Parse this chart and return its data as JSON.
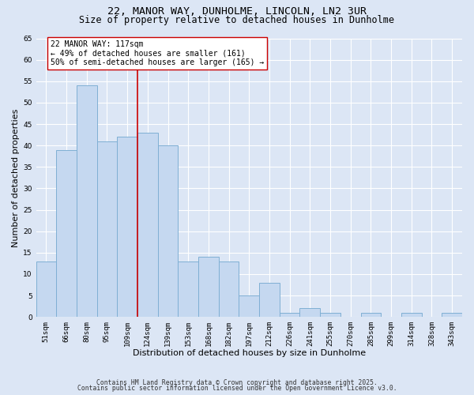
{
  "title_line1": "22, MANOR WAY, DUNHOLME, LINCOLN, LN2 3UR",
  "title_line2": "Size of property relative to detached houses in Dunholme",
  "xlabel": "Distribution of detached houses by size in Dunholme",
  "ylabel": "Number of detached properties",
  "categories": [
    "51sqm",
    "66sqm",
    "80sqm",
    "95sqm",
    "109sqm",
    "124sqm",
    "139sqm",
    "153sqm",
    "168sqm",
    "182sqm",
    "197sqm",
    "212sqm",
    "226sqm",
    "241sqm",
    "255sqm",
    "270sqm",
    "285sqm",
    "299sqm",
    "314sqm",
    "328sqm",
    "343sqm"
  ],
  "values": [
    13,
    39,
    54,
    41,
    42,
    43,
    40,
    13,
    14,
    13,
    5,
    8,
    1,
    2,
    1,
    0,
    1,
    0,
    1,
    0,
    1
  ],
  "bar_color": "#c5d8f0",
  "bar_edge_color": "#7fafd4",
  "vline_x": 4.5,
  "vline_color": "#cc0000",
  "annotation_text": "22 MANOR WAY: 117sqm\n← 49% of detached houses are smaller (161)\n50% of semi-detached houses are larger (165) →",
  "annotation_box_color": "#ffffff",
  "annotation_box_edge": "#cc0000",
  "ylim": [
    0,
    65
  ],
  "yticks": [
    0,
    5,
    10,
    15,
    20,
    25,
    30,
    35,
    40,
    45,
    50,
    55,
    60,
    65
  ],
  "background_color": "#dce6f5",
  "grid_color": "#ffffff",
  "footer_line1": "Contains HM Land Registry data © Crown copyright and database right 2025.",
  "footer_line2": "Contains public sector information licensed under the Open Government Licence v3.0.",
  "title_fontsize": 9.5,
  "subtitle_fontsize": 8.5,
  "axis_label_fontsize": 8,
  "tick_fontsize": 6.5,
  "annotation_fontsize": 7,
  "footer_fontsize": 5.8
}
